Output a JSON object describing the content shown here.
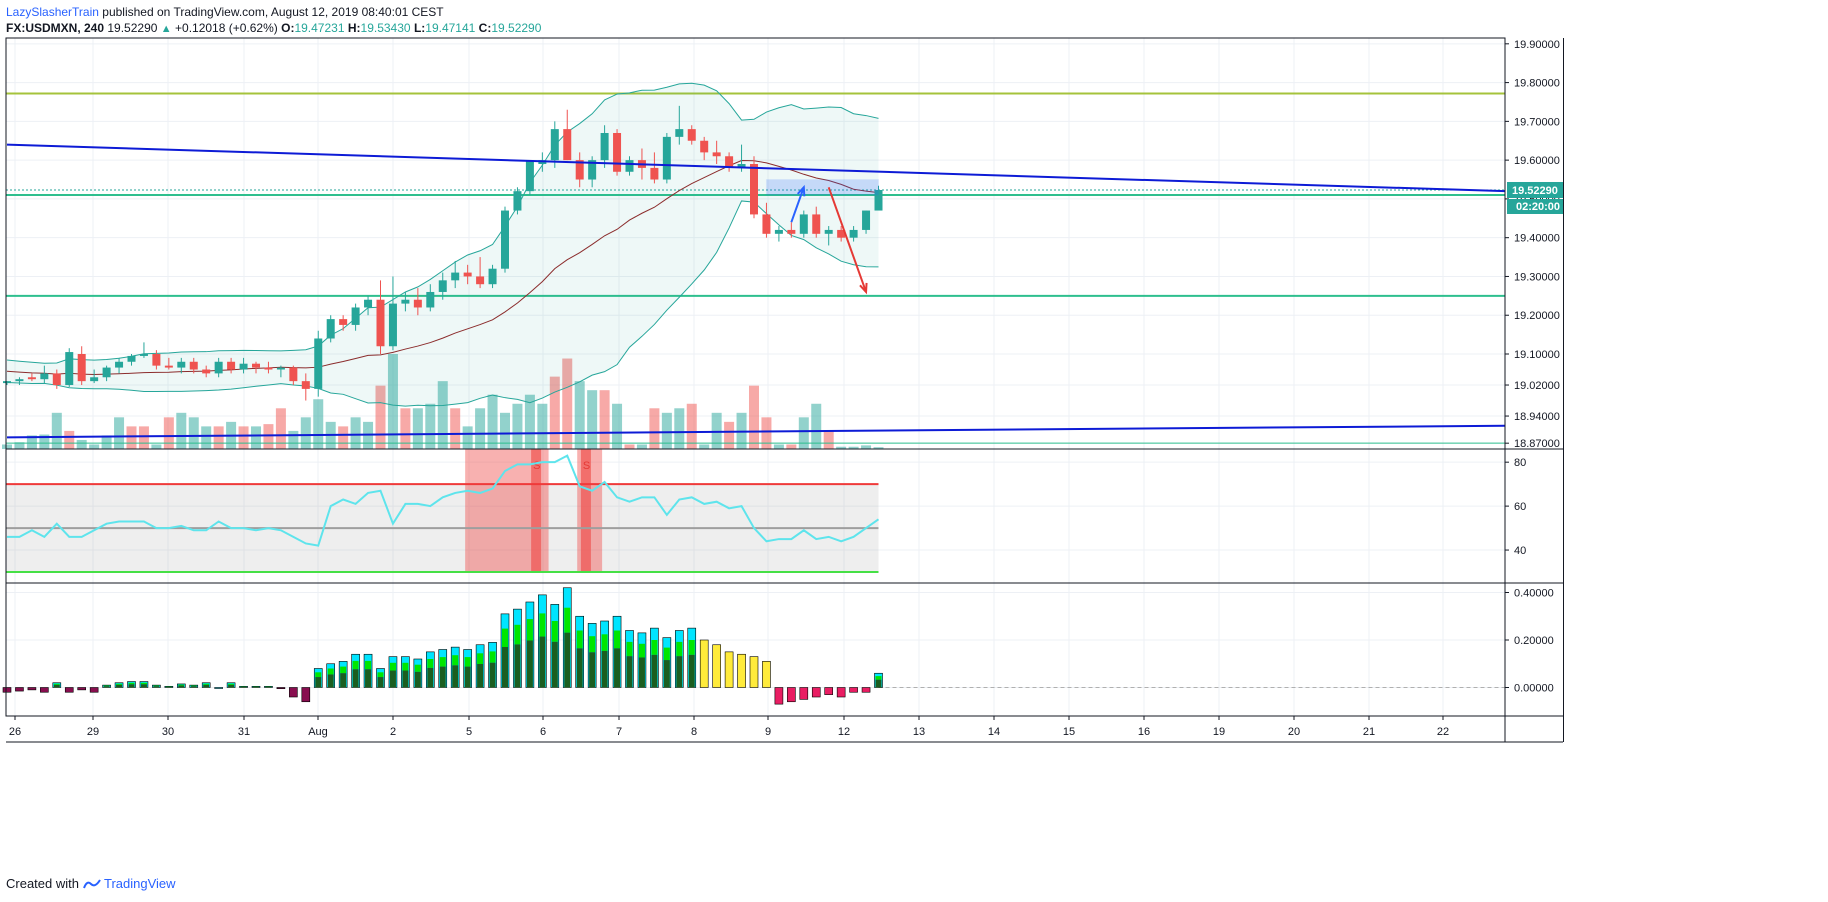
{
  "header": {
    "author": "LazySlasherTrain",
    "published": "published on TradingView.com, August 12, 2019 08:40:01 CEST",
    "symbol": "FX:USDMXN, 240",
    "last": "19.52290",
    "arrow": "▲",
    "change": "+0.12018 (+0.62%)",
    "o_label": "O:",
    "o": "19.47231",
    "h_label": "H:",
    "h": "19.53430",
    "l_label": "L:",
    "l": "19.47141",
    "c_label": "C:",
    "c": "19.52290"
  },
  "footer": {
    "created": "Created with",
    "brand": "TradingView"
  },
  "colors": {
    "up": "#26a69a",
    "down": "#ef5350",
    "trend": "#0d1bd6",
    "bb": "#26a69a",
    "ma": "#8b2c2c",
    "level_yellow": "#a5c33b",
    "level_green": "#2ebf8e",
    "rsi": "#5ee4ec",
    "rsi_upper": "#ef3a3a",
    "rsi_lower": "#46e046"
  },
  "chart_data": [
    {
      "type": "candlestick",
      "panel": "price",
      "symbol": "FX:USDMXN",
      "timeframe": "240",
      "x_ticks": [
        "26",
        "29",
        "30",
        "31",
        "Aug",
        "2",
        "5",
        "6",
        "7",
        "8",
        "9",
        "12",
        "13",
        "14",
        "15",
        "16",
        "19",
        "20",
        "21",
        "22"
      ],
      "y_ticks": [
        "19.90000",
        "19.80000",
        "19.70000",
        "19.60000",
        "19.50000",
        "19.40000",
        "19.30000",
        "19.20000",
        "19.10000",
        "19.02000",
        "18.94000",
        "18.87000"
      ],
      "ylim": [
        18.855,
        19.915
      ],
      "current_price": "19.52290",
      "countdown": "02:20:00",
      "candles": [
        [
          19.025,
          19.03,
          19.02,
          19.03
        ],
        [
          19.03,
          19.04,
          19.02,
          19.035
        ],
        [
          19.04,
          19.05,
          19.03,
          19.035
        ],
        [
          19.035,
          19.07,
          19.025,
          19.05
        ],
        [
          19.05,
          19.06,
          19.01,
          19.02
        ],
        [
          19.02,
          19.115,
          19.015,
          19.105
        ],
        [
          19.1,
          19.12,
          19.02,
          19.03
        ],
        [
          19.03,
          19.06,
          19.025,
          19.04
        ],
        [
          19.04,
          19.07,
          19.03,
          19.065
        ],
        [
          19.065,
          19.09,
          19.05,
          19.08
        ],
        [
          19.08,
          19.1,
          19.07,
          19.095
        ],
        [
          19.095,
          19.13,
          19.09,
          19.1
        ],
        [
          19.1,
          19.11,
          19.06,
          19.07
        ],
        [
          19.07,
          19.09,
          19.06,
          19.065
        ],
        [
          19.065,
          19.09,
          19.05,
          19.08
        ],
        [
          19.08,
          19.09,
          19.05,
          19.06
        ],
        [
          19.06,
          19.07,
          19.04,
          19.05
        ],
        [
          19.05,
          19.09,
          19.04,
          19.08
        ],
        [
          19.08,
          19.09,
          19.05,
          19.06
        ],
        [
          19.06,
          19.09,
          19.05,
          19.075
        ],
        [
          19.075,
          19.08,
          19.05,
          19.065
        ],
        [
          19.065,
          19.08,
          19.05,
          19.06
        ],
        [
          19.06,
          19.07,
          19.04,
          19.065
        ],
        [
          19.065,
          19.07,
          19.02,
          19.03
        ],
        [
          19.03,
          19.05,
          18.98,
          19.01
        ],
        [
          19.01,
          19.16,
          18.99,
          19.14
        ],
        [
          19.14,
          19.2,
          19.13,
          19.19
        ],
        [
          19.19,
          19.2,
          19.16,
          19.175
        ],
        [
          19.175,
          19.23,
          19.16,
          19.22
        ],
        [
          19.22,
          19.25,
          19.2,
          19.24
        ],
        [
          19.24,
          19.29,
          19.1,
          19.12
        ],
        [
          19.12,
          19.3,
          19.11,
          19.23
        ],
        [
          19.23,
          19.26,
          19.21,
          19.24
        ],
        [
          19.24,
          19.27,
          19.2,
          19.22
        ],
        [
          19.22,
          19.28,
          19.21,
          19.26
        ],
        [
          19.26,
          19.31,
          19.24,
          19.29
        ],
        [
          19.29,
          19.34,
          19.27,
          19.31
        ],
        [
          19.31,
          19.33,
          19.28,
          19.3
        ],
        [
          19.3,
          19.35,
          19.27,
          19.28
        ],
        [
          19.28,
          19.33,
          19.27,
          19.32
        ],
        [
          19.32,
          19.48,
          19.31,
          19.47
        ],
        [
          19.47,
          19.53,
          19.46,
          19.52
        ],
        [
          19.52,
          19.6,
          19.51,
          19.6
        ],
        [
          19.59,
          19.62,
          19.57,
          19.6
        ],
        [
          19.6,
          19.7,
          19.58,
          19.68
        ],
        [
          19.68,
          19.73,
          19.6,
          19.6
        ],
        [
          19.6,
          19.62,
          19.53,
          19.55
        ],
        [
          19.55,
          19.61,
          19.53,
          19.6
        ],
        [
          19.6,
          19.69,
          19.58,
          19.67
        ],
        [
          19.67,
          19.68,
          19.56,
          19.57
        ],
        [
          19.57,
          19.61,
          19.56,
          19.6
        ],
        [
          19.6,
          19.63,
          19.55,
          19.58
        ],
        [
          19.58,
          19.62,
          19.54,
          19.55
        ],
        [
          19.55,
          19.67,
          19.54,
          19.66
        ],
        [
          19.66,
          19.74,
          19.64,
          19.68
        ],
        [
          19.68,
          19.69,
          19.64,
          19.65
        ],
        [
          19.65,
          19.66,
          19.6,
          19.62
        ],
        [
          19.62,
          19.65,
          19.59,
          19.61
        ],
        [
          19.61,
          19.62,
          19.57,
          19.58
        ],
        [
          19.58,
          19.64,
          19.57,
          19.59
        ],
        [
          19.59,
          19.61,
          19.45,
          19.46
        ],
        [
          19.46,
          19.49,
          19.4,
          19.41
        ],
        [
          19.41,
          19.43,
          19.39,
          19.42
        ],
        [
          19.42,
          19.44,
          19.4,
          19.41
        ],
        [
          19.41,
          19.47,
          19.4,
          19.46
        ],
        [
          19.46,
          19.48,
          19.4,
          19.41
        ],
        [
          19.41,
          19.43,
          19.38,
          19.42
        ],
        [
          19.42,
          19.43,
          19.39,
          19.4
        ],
        [
          19.4,
          19.43,
          19.39,
          19.42
        ],
        [
          19.42,
          19.47,
          19.41,
          19.47
        ],
        [
          19.47,
          19.534,
          19.471,
          19.523
        ]
      ],
      "volume": [
        [
          1,
          1
        ],
        [
          1.5,
          1
        ],
        [
          3,
          1
        ],
        [
          3.2,
          1
        ],
        [
          8,
          1
        ],
        [
          4,
          0
        ],
        [
          2,
          1
        ],
        [
          1,
          1
        ],
        [
          3,
          1
        ],
        [
          7,
          1
        ],
        [
          5,
          0
        ],
        [
          5,
          0
        ],
        [
          1,
          1
        ],
        [
          7,
          0
        ],
        [
          8,
          1
        ],
        [
          7,
          1
        ],
        [
          5,
          1
        ],
        [
          5,
          0
        ],
        [
          6,
          1
        ],
        [
          5,
          0
        ],
        [
          5,
          1
        ],
        [
          5.5,
          0
        ],
        [
          9,
          0
        ],
        [
          4,
          1
        ],
        [
          7,
          1
        ],
        [
          11,
          1
        ],
        [
          6,
          1
        ],
        [
          5,
          0
        ],
        [
          7,
          1
        ],
        [
          6,
          1
        ],
        [
          14,
          0
        ],
        [
          21,
          1
        ],
        [
          9,
          0
        ],
        [
          9,
          1
        ],
        [
          10,
          1
        ],
        [
          15,
          1
        ],
        [
          9,
          0
        ],
        [
          5,
          1
        ],
        [
          9,
          1
        ],
        [
          12,
          1
        ],
        [
          8,
          1
        ],
        [
          10,
          1
        ],
        [
          12,
          1
        ],
        [
          10,
          1
        ],
        [
          16,
          0
        ],
        [
          20,
          0
        ],
        [
          15,
          1
        ],
        [
          13,
          1
        ],
        [
          13,
          0
        ],
        [
          10,
          1
        ],
        [
          1,
          0
        ],
        [
          1,
          1
        ],
        [
          9,
          0
        ],
        [
          8,
          1
        ],
        [
          9,
          1
        ],
        [
          10,
          0
        ],
        [
          1,
          1
        ],
        [
          8,
          1
        ],
        [
          6,
          0
        ],
        [
          8,
          1
        ],
        [
          14,
          0
        ],
        [
          7,
          0
        ],
        [
          1,
          1
        ],
        [
          1,
          0
        ],
        [
          7,
          1
        ],
        [
          10,
          1
        ],
        [
          4,
          0
        ],
        [
          0.5,
          1
        ],
        [
          0.5,
          1
        ],
        [
          0.8,
          1
        ],
        [
          0.4,
          1
        ]
      ],
      "trendlines": [
        {
          "from": [
            0,
            19.64
          ],
          "to": [
            123,
            19.52
          ]
        },
        {
          "from": [
            0,
            18.885
          ],
          "to": [
            123,
            18.915
          ]
        }
      ],
      "levels": [
        19.772,
        19.51,
        19.25,
        18.87
      ],
      "arrows": [
        {
          "color": "#2962ff",
          "from": [
            63,
            19.44
          ],
          "to": [
            64,
            19.53
          ]
        },
        {
          "color": "#e53935",
          "from": [
            66,
            19.53
          ],
          "to": [
            69,
            19.26
          ]
        }
      ]
    },
    {
      "type": "line",
      "panel": "rsi",
      "y_ticks": [
        "80",
        "60",
        "40"
      ],
      "ylim": [
        25,
        86
      ],
      "levels": {
        "upper": 70,
        "mid": 50,
        "lower": 30
      },
      "signals": [
        {
          "x": 42.5,
          "label": "S"
        },
        {
          "x": 46.5,
          "label": "S"
        }
      ],
      "values": [
        46,
        46,
        49,
        46,
        52,
        46,
        46,
        49,
        52,
        53,
        53,
        53,
        50,
        50,
        51,
        49,
        49,
        53,
        50,
        50,
        49,
        50,
        49,
        46,
        43,
        42,
        60,
        63,
        61,
        66,
        67,
        52,
        61,
        61,
        60,
        64,
        66,
        67,
        66,
        68,
        76,
        79,
        79,
        80,
        80,
        83,
        69,
        67,
        71,
        64,
        62,
        64,
        64,
        56,
        63,
        64,
        61,
        62,
        59,
        60,
        50,
        44,
        45,
        45,
        49,
        45,
        46,
        44,
        46,
        50,
        54
      ]
    },
    {
      "type": "bar",
      "panel": "momentum",
      "y_ticks": [
        "0.40000",
        "0.20000",
        "0.00000"
      ],
      "ylim": [
        -0.12,
        0.44
      ],
      "values": [
        -0.02,
        -0.015,
        -0.01,
        -0.02,
        0.02,
        -0.02,
        -0.01,
        -0.02,
        0.01,
        0.02,
        0.025,
        0.025,
        0.01,
        0.005,
        0.015,
        0.01,
        0.02,
        0,
        0.02,
        0.005,
        0.005,
        0.005,
        -0.005,
        -0.04,
        -0.06,
        0.08,
        0.1,
        0.11,
        0.14,
        0.14,
        0.08,
        0.13,
        0.13,
        0.12,
        0.15,
        0.16,
        0.17,
        0.16,
        0.18,
        0.19,
        0.31,
        0.33,
        0.36,
        0.39,
        0.35,
        0.42,
        0.3,
        0.27,
        0.28,
        0.3,
        0.24,
        0.23,
        0.25,
        0.21,
        0.24,
        0.25,
        0.2,
        0.18,
        0.15,
        0.14,
        0.13,
        0.11,
        -0.07,
        -0.06,
        -0.05,
        -0.04,
        -0.03,
        -0.04,
        -0.02,
        -0.02,
        0.06
      ]
    }
  ]
}
